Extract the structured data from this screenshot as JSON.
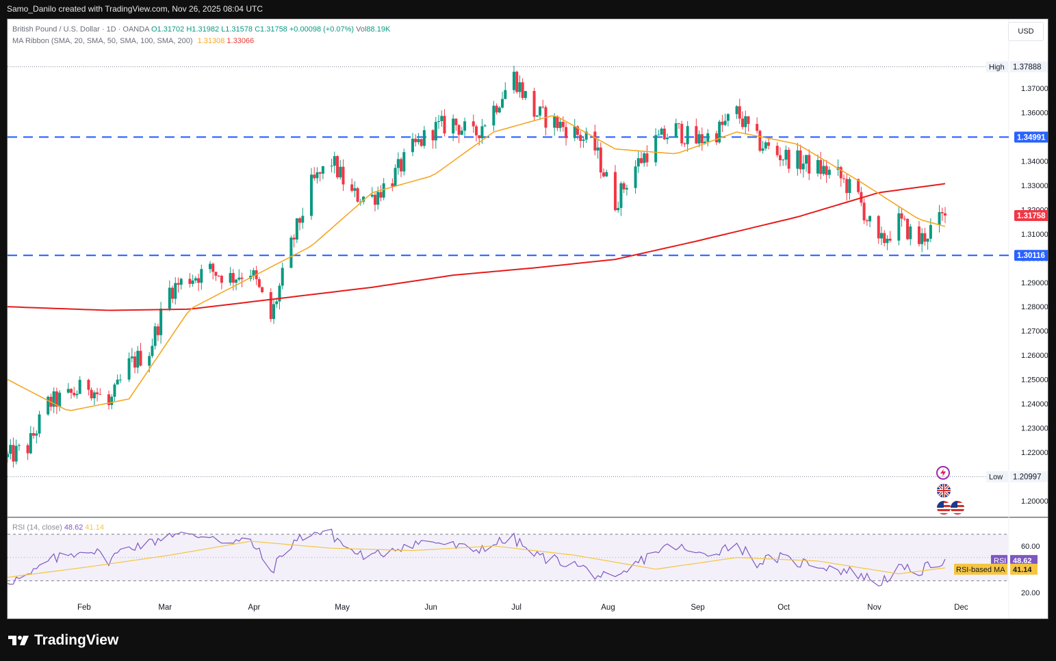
{
  "header": {
    "attribution": "Samo_Danilo created with TradingView.com, Nov 26, 2025 08:04 UTC"
  },
  "legend": {
    "symbol": "British Pound / U.S. Dollar · 1D · OANDA",
    "open": "O1.31702",
    "high": "H1.31982",
    "low": "L1.31578",
    "close": "C1.31758",
    "change": "+0.00098 (+0.07%)",
    "volume_label": "Vol",
    "volume": "88.19K",
    "ribbon_label": "MA Ribbon (SMA, 20, SMA, 50, SMA, 100, SMA, 200)",
    "ma20_value": "1.31308",
    "ma200_value": "1.33066"
  },
  "currency_button": "USD",
  "rsi_legend": {
    "label": "RSI (14, close)",
    "rsi_value": "48.62",
    "ma_value": "41.14"
  },
  "brand": {
    "name": "TradingView"
  },
  "colors": {
    "up": "#089981",
    "down": "#f23645",
    "ma20": "#f5a623",
    "ma200": "#e51a1a",
    "level_line": "#2962ff",
    "rsi": "#7e57c2",
    "rsi_ma": "#f5c542"
  },
  "chart_data": [
    {
      "type": "candlestick",
      "title": "British Pound / U.S. Dollar · 1D · OANDA",
      "y_ticks": [
        "1.37000",
        "1.36000",
        "1.35000",
        "1.34000",
        "1.33000",
        "1.32000",
        "1.31000",
        "1.30000",
        "1.29000",
        "1.28000",
        "1.27000",
        "1.26000",
        "1.25000",
        "1.24000",
        "1.23000",
        "1.22000",
        "1.20000"
      ],
      "ylim": [
        1.1935,
        1.3985
      ],
      "x_labels": [
        "Feb",
        "Mar",
        "Apr",
        "May",
        "Jun",
        "Jul",
        "Aug",
        "Sep",
        "Oct",
        "Nov",
        "Dec"
      ],
      "x_label_dates": [
        "2025-02-01",
        "2025-03-01",
        "2025-04-01",
        "2025-05-01",
        "2025-06-01",
        "2025-07-01",
        "2025-08-01",
        "2025-09-01",
        "2025-10-01",
        "2025-11-01",
        "2025-12-01"
      ],
      "date_range": [
        "2025-01-06",
        "2025-11-26"
      ],
      "price_labels": {
        "high": {
          "label": "High",
          "value": 1.37888,
          "text": "1.37888"
        },
        "low": {
          "label": "Low",
          "value": 1.20997,
          "text": "1.20997"
        },
        "last": {
          "value": 1.31758,
          "text": "1.31758"
        },
        "resistance": {
          "value": 1.34991,
          "text": "1.34991"
        },
        "support": {
          "value": 1.30116,
          "text": "1.30116"
        }
      },
      "close_path": {
        "dates": [
          "2025-01-06",
          "2025-01-13",
          "2025-01-20",
          "2025-01-27",
          "2025-02-03",
          "2025-02-10",
          "2025-02-17",
          "2025-02-24",
          "2025-03-03",
          "2025-03-10",
          "2025-03-17",
          "2025-03-24",
          "2025-03-31",
          "2025-04-07",
          "2025-04-14",
          "2025-04-21",
          "2025-04-28",
          "2025-05-05",
          "2025-05-12",
          "2025-05-19",
          "2025-05-26",
          "2025-06-02",
          "2025-06-09",
          "2025-06-16",
          "2025-06-23",
          "2025-06-30",
          "2025-07-07",
          "2025-07-14",
          "2025-07-21",
          "2025-07-28",
          "2025-08-04",
          "2025-08-11",
          "2025-08-18",
          "2025-08-25",
          "2025-09-01",
          "2025-09-08",
          "2025-09-15",
          "2025-09-22",
          "2025-09-29",
          "2025-10-06",
          "2025-10-13",
          "2025-10-20",
          "2025-10-27",
          "2025-11-03",
          "2025-11-10",
          "2025-11-17",
          "2025-11-26"
        ],
        "values": [
          1.218,
          1.222,
          1.24,
          1.243,
          1.248,
          1.239,
          1.256,
          1.262,
          1.287,
          1.292,
          1.295,
          1.292,
          1.295,
          1.275,
          1.305,
          1.33,
          1.34,
          1.326,
          1.325,
          1.333,
          1.345,
          1.353,
          1.356,
          1.35,
          1.362,
          1.375,
          1.36,
          1.356,
          1.352,
          1.345,
          1.323,
          1.338,
          1.348,
          1.353,
          1.348,
          1.352,
          1.36,
          1.348,
          1.343,
          1.34,
          1.337,
          1.334,
          1.325,
          1.305,
          1.315,
          1.307,
          1.3176
        ]
      },
      "ma20": {
        "dates": [
          "2025-01-06",
          "2025-01-27",
          "2025-02-17",
          "2025-03-10",
          "2025-03-31",
          "2025-04-21",
          "2025-05-12",
          "2025-06-02",
          "2025-06-23",
          "2025-07-14",
          "2025-08-04",
          "2025-08-25",
          "2025-09-15",
          "2025-10-06",
          "2025-10-27",
          "2025-11-17",
          "2025-11-26"
        ],
        "values": [
          1.25,
          1.237,
          1.242,
          1.279,
          1.292,
          1.305,
          1.327,
          1.334,
          1.352,
          1.359,
          1.345,
          1.343,
          1.352,
          1.347,
          1.332,
          1.316,
          1.3131
        ]
      },
      "ma200": {
        "dates": [
          "2025-01-06",
          "2025-02-10",
          "2025-03-10",
          "2025-04-07",
          "2025-05-12",
          "2025-06-09",
          "2025-07-07",
          "2025-08-04",
          "2025-09-01",
          "2025-10-06",
          "2025-11-03",
          "2025-11-26"
        ],
        "values": [
          1.28,
          1.2785,
          1.279,
          1.283,
          1.288,
          1.293,
          1.296,
          1.2995,
          1.307,
          1.317,
          1.327,
          1.3307
        ]
      }
    },
    {
      "type": "line",
      "title": "RSI (14, close)",
      "y_ticks": [
        "60.00",
        "20.00"
      ],
      "ylim": [
        14,
        84
      ],
      "bands": [
        30,
        70
      ],
      "rsi_label": "RSI",
      "rsi_ma_label": "RSI-based MA",
      "series": [
        {
          "name": "RSI",
          "dates": [
            "2025-01-06",
            "2025-01-13",
            "2025-01-20",
            "2025-01-27",
            "2025-02-03",
            "2025-02-10",
            "2025-02-17",
            "2025-02-24",
            "2025-03-03",
            "2025-03-10",
            "2025-03-17",
            "2025-03-24",
            "2025-03-31",
            "2025-04-07",
            "2025-04-14",
            "2025-04-21",
            "2025-04-28",
            "2025-05-05",
            "2025-05-12",
            "2025-05-19",
            "2025-05-26",
            "2025-06-02",
            "2025-06-09",
            "2025-06-16",
            "2025-06-23",
            "2025-06-30",
            "2025-07-07",
            "2025-07-14",
            "2025-07-21",
            "2025-07-28",
            "2025-08-04",
            "2025-08-11",
            "2025-08-18",
            "2025-08-25",
            "2025-09-01",
            "2025-09-08",
            "2025-09-15",
            "2025-09-22",
            "2025-09-29",
            "2025-10-06",
            "2025-10-13",
            "2025-10-20",
            "2025-10-27",
            "2025-11-03",
            "2025-11-10",
            "2025-11-17",
            "2025-11-26"
          ],
          "values": [
            30,
            33,
            47,
            52,
            58,
            48,
            60,
            62,
            71,
            68,
            70,
            62,
            65,
            38,
            62,
            72,
            70,
            55,
            50,
            58,
            62,
            64,
            60,
            56,
            62,
            66,
            52,
            48,
            44,
            36,
            29,
            44,
            56,
            60,
            52,
            56,
            62,
            46,
            50,
            46,
            44,
            40,
            36,
            28,
            40,
            38,
            48.62
          ]
        },
        {
          "name": "RSI-based MA",
          "dates": [
            "2025-01-06",
            "2025-02-03",
            "2025-03-03",
            "2025-03-31",
            "2025-04-28",
            "2025-05-26",
            "2025-06-23",
            "2025-07-21",
            "2025-08-18",
            "2025-09-15",
            "2025-10-13",
            "2025-11-10",
            "2025-11-26"
          ],
          "values": [
            33,
            42,
            52,
            64,
            58,
            56,
            60,
            52,
            40,
            50,
            47,
            36,
            41.14
          ]
        }
      ]
    }
  ]
}
